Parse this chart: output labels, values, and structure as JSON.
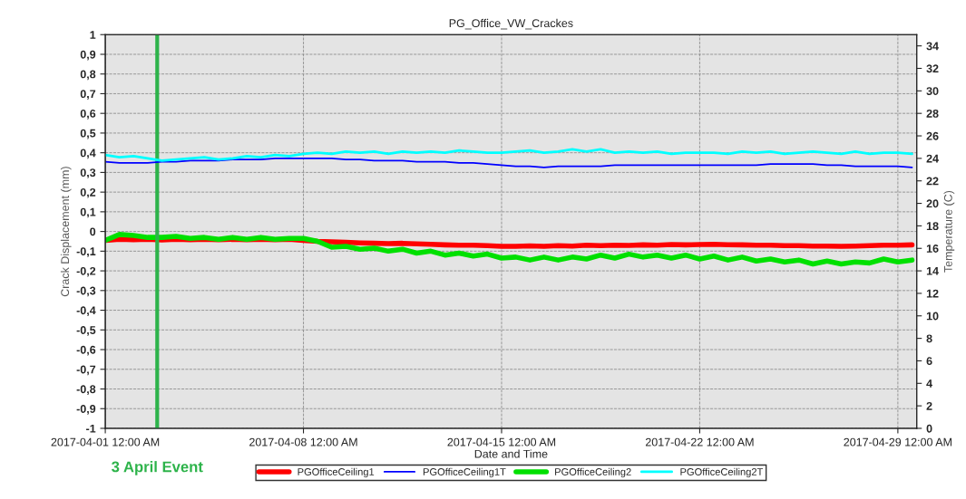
{
  "chart_data": {
    "type": "line",
    "title": "PG_Office_VW_Crackes",
    "xlabel": "Date and Time",
    "ylabel": "Crack Displacement (mm)",
    "y2label": "Temperature (C)",
    "x": [
      "2017-04-01T00:00",
      "2017-04-01T12:00",
      "2017-04-02T00:00",
      "2017-04-02T12:00",
      "2017-04-03T00:00",
      "2017-04-03T12:00",
      "2017-04-04T00:00",
      "2017-04-04T12:00",
      "2017-04-05T00:00",
      "2017-04-05T12:00",
      "2017-04-06T00:00",
      "2017-04-06T12:00",
      "2017-04-07T00:00",
      "2017-04-07T12:00",
      "2017-04-08T00:00",
      "2017-04-08T12:00",
      "2017-04-09T00:00",
      "2017-04-09T12:00",
      "2017-04-10T00:00",
      "2017-04-10T12:00",
      "2017-04-11T00:00",
      "2017-04-11T12:00",
      "2017-04-12T00:00",
      "2017-04-12T12:00",
      "2017-04-13T00:00",
      "2017-04-13T12:00",
      "2017-04-14T00:00",
      "2017-04-14T12:00",
      "2017-04-15T00:00",
      "2017-04-15T12:00",
      "2017-04-16T00:00",
      "2017-04-16T12:00",
      "2017-04-17T00:00",
      "2017-04-17T12:00",
      "2017-04-18T00:00",
      "2017-04-18T12:00",
      "2017-04-19T00:00",
      "2017-04-19T12:00",
      "2017-04-20T00:00",
      "2017-04-20T12:00",
      "2017-04-21T00:00",
      "2017-04-21T12:00",
      "2017-04-22T00:00",
      "2017-04-22T12:00",
      "2017-04-23T00:00",
      "2017-04-23T12:00",
      "2017-04-24T00:00",
      "2017-04-24T12:00",
      "2017-04-25T00:00",
      "2017-04-25T12:00",
      "2017-04-26T00:00",
      "2017-04-26T12:00",
      "2017-04-27T00:00",
      "2017-04-27T12:00",
      "2017-04-28T00:00",
      "2017-04-28T12:00",
      "2017-04-29T00:00",
      "2017-04-29T12:00"
    ],
    "series": [
      {
        "name": "PGOfficeCeiling1",
        "color": "#ff0000",
        "values": [
          -0.045,
          -0.04,
          -0.042,
          -0.04,
          -0.043,
          -0.04,
          -0.042,
          -0.04,
          -0.042,
          -0.04,
          -0.042,
          -0.04,
          -0.042,
          -0.04,
          -0.045,
          -0.05,
          -0.052,
          -0.055,
          -0.058,
          -0.06,
          -0.062,
          -0.06,
          -0.063,
          -0.065,
          -0.068,
          -0.07,
          -0.07,
          -0.072,
          -0.075,
          -0.075,
          -0.073,
          -0.075,
          -0.072,
          -0.074,
          -0.07,
          -0.072,
          -0.07,
          -0.071,
          -0.068,
          -0.07,
          -0.066,
          -0.068,
          -0.066,
          -0.065,
          -0.067,
          -0.068,
          -0.07,
          -0.07,
          -0.072,
          -0.072,
          -0.074,
          -0.074,
          -0.075,
          -0.074,
          -0.072,
          -0.07,
          -0.07,
          -0.068
        ]
      },
      {
        "name": "PGOfficeCeiling1T",
        "color": "#0000ff",
        "axis": "y2",
        "values": [
          23.7,
          23.6,
          23.6,
          23.6,
          23.7,
          23.7,
          23.8,
          23.8,
          23.8,
          23.9,
          23.9,
          23.9,
          24.0,
          24.0,
          24.0,
          24.0,
          24.0,
          23.9,
          23.9,
          23.8,
          23.8,
          23.8,
          23.7,
          23.7,
          23.7,
          23.6,
          23.6,
          23.5,
          23.4,
          23.3,
          23.3,
          23.2,
          23.3,
          23.3,
          23.3,
          23.3,
          23.4,
          23.4,
          23.4,
          23.4,
          23.4,
          23.4,
          23.4,
          23.4,
          23.4,
          23.4,
          23.4,
          23.5,
          23.5,
          23.5,
          23.5,
          23.4,
          23.4,
          23.3,
          23.3,
          23.3,
          23.3,
          23.2
        ]
      },
      {
        "name": "PGOfficeCeiling2",
        "color": "#00e000",
        "values": [
          -0.045,
          -0.015,
          -0.02,
          -0.03,
          -0.03,
          -0.025,
          -0.035,
          -0.03,
          -0.04,
          -0.03,
          -0.04,
          -0.03,
          -0.04,
          -0.035,
          -0.035,
          -0.05,
          -0.08,
          -0.075,
          -0.09,
          -0.085,
          -0.1,
          -0.09,
          -0.11,
          -0.1,
          -0.12,
          -0.11,
          -0.125,
          -0.115,
          -0.135,
          -0.13,
          -0.145,
          -0.13,
          -0.145,
          -0.13,
          -0.14,
          -0.12,
          -0.135,
          -0.115,
          -0.13,
          -0.12,
          -0.135,
          -0.12,
          -0.14,
          -0.125,
          -0.145,
          -0.13,
          -0.15,
          -0.14,
          -0.155,
          -0.145,
          -0.165,
          -0.15,
          -0.165,
          -0.155,
          -0.16,
          -0.14,
          -0.155,
          -0.145
        ]
      },
      {
        "name": "PGOfficeCeiling2T",
        "color": "#00ffff",
        "axis": "y2",
        "values": [
          24.3,
          24.1,
          24.2,
          24.0,
          23.8,
          23.9,
          24.0,
          24.1,
          23.9,
          24.0,
          24.2,
          24.1,
          24.3,
          24.2,
          24.4,
          24.5,
          24.4,
          24.6,
          24.5,
          24.6,
          24.4,
          24.6,
          24.5,
          24.6,
          24.5,
          24.7,
          24.6,
          24.5,
          24.5,
          24.6,
          24.7,
          24.5,
          24.6,
          24.8,
          24.6,
          24.8,
          24.5,
          24.6,
          24.5,
          24.6,
          24.4,
          24.5,
          24.5,
          24.5,
          24.4,
          24.6,
          24.5,
          24.6,
          24.4,
          24.5,
          24.6,
          24.5,
          24.4,
          24.6,
          24.4,
          24.5,
          24.5,
          24.4
        ]
      }
    ],
    "xlim": [
      "2017-04-01T00:00",
      "2017-04-29T16:00"
    ],
    "xticks": [
      {
        "value": "2017-04-01",
        "label": "2017-04-01 12:00 AM"
      },
      {
        "value": "2017-04-08",
        "label": "2017-04-08 12:00 AM"
      },
      {
        "value": "2017-04-15",
        "label": "2017-04-15 12:00 AM"
      },
      {
        "value": "2017-04-22",
        "label": "2017-04-22 12:00 AM"
      },
      {
        "value": "2017-04-29",
        "label": "2017-04-29 12:00 AM"
      }
    ],
    "ylim": [
      -1,
      1
    ],
    "yticks": [
      {
        "value": -1,
        "label": "-1"
      },
      {
        "value": -0.9,
        "label": "-0,9"
      },
      {
        "value": -0.8,
        "label": "-0,8"
      },
      {
        "value": -0.7,
        "label": "-0,7"
      },
      {
        "value": -0.6,
        "label": "-0,6"
      },
      {
        "value": -0.5,
        "label": "-0,5"
      },
      {
        "value": -0.4,
        "label": "-0,4"
      },
      {
        "value": -0.3,
        "label": "-0,3"
      },
      {
        "value": -0.2,
        "label": "-0,2"
      },
      {
        "value": -0.1,
        "label": "-0,1"
      },
      0,
      {
        "value": 0.1,
        "label": "0,1"
      },
      {
        "value": 0.2,
        "label": "0,2"
      },
      {
        "value": 0.3,
        "label": "0,3"
      },
      {
        "value": 0.4,
        "label": "0,4"
      },
      {
        "value": 0.5,
        "label": "0,5"
      },
      {
        "value": 0.6,
        "label": "0,6"
      },
      {
        "value": 0.7,
        "label": "0,7"
      },
      {
        "value": 0.8,
        "label": "0,8"
      },
      {
        "value": 0.9,
        "label": "0,9"
      },
      1
    ],
    "y2lim": [
      0,
      35
    ],
    "y2ticks": [
      0,
      2,
      4,
      6,
      8,
      10,
      12,
      14,
      16,
      18,
      20,
      22,
      24,
      26,
      28,
      30,
      32,
      34
    ],
    "ref_lines": [
      {
        "axis": "x",
        "value": "2017-04-02T20:00",
        "label": "3 April Event",
        "color": "#2db34a"
      }
    ],
    "grid": true,
    "legend": "bottom"
  }
}
